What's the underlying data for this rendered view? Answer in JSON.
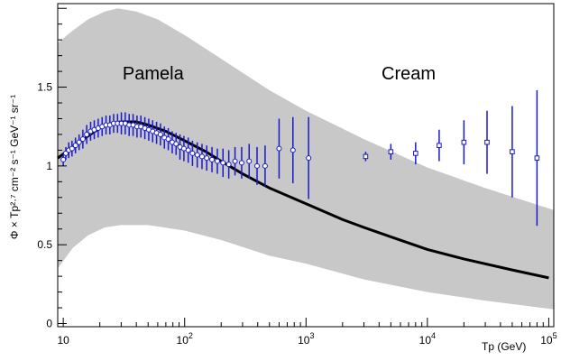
{
  "chart_data": {
    "type": "line",
    "title": "",
    "xlabel": "Tp (GeV)",
    "ylabel": "Φ × Tp²·⁷ cm⁻² s⁻¹ GeV⁻¹ sr⁻¹",
    "xscale": "log",
    "xlim": [
      9,
      110000
    ],
    "ylim": [
      -0.02,
      2.03
    ],
    "x_ticks": [
      {
        "value": 10,
        "base": "10",
        "exp": ""
      },
      {
        "value": 100,
        "base": "10",
        "exp": "2"
      },
      {
        "value": 1000,
        "base": "10",
        "exp": "3"
      },
      {
        "value": 10000,
        "base": "10",
        "exp": "4"
      },
      {
        "value": 100000,
        "base": "10",
        "exp": "5"
      }
    ],
    "y_ticks": [
      {
        "value": 0,
        "label": "0"
      },
      {
        "value": 0.5,
        "label": "0.5"
      },
      {
        "value": 1,
        "label": "1"
      },
      {
        "value": 1.5,
        "label": "1.5"
      }
    ],
    "annotations": [
      {
        "text": "Pamela",
        "x": 55,
        "y": 1.55
      },
      {
        "text": "Cream",
        "x": 7000,
        "y": 1.55
      }
    ],
    "band": {
      "color": "#c8c8c8",
      "upper": [
        [
          9,
          1.78
        ],
        [
          12,
          1.86
        ],
        [
          16,
          1.93
        ],
        [
          22,
          1.98
        ],
        [
          28,
          2.0
        ],
        [
          40,
          1.98
        ],
        [
          60,
          1.93
        ],
        [
          100,
          1.83
        ],
        [
          200,
          1.68
        ],
        [
          500,
          1.48
        ],
        [
          1000,
          1.35
        ],
        [
          3000,
          1.17
        ],
        [
          10000,
          0.99
        ],
        [
          30000,
          0.86
        ],
        [
          110000,
          0.72
        ]
      ],
      "lower": [
        [
          9,
          0.35
        ],
        [
          12,
          0.48
        ],
        [
          16,
          0.56
        ],
        [
          22,
          0.61
        ],
        [
          30,
          0.625
        ],
        [
          50,
          0.625
        ],
        [
          100,
          0.59
        ],
        [
          200,
          0.53
        ],
        [
          500,
          0.43
        ],
        [
          1000,
          0.38
        ],
        [
          3000,
          0.28
        ],
        [
          10000,
          0.2
        ],
        [
          30000,
          0.145
        ],
        [
          110000,
          0.09
        ]
      ]
    },
    "series": [
      {
        "type": "line",
        "color": "#000000",
        "values": [
          [
            9,
            1.05
          ],
          [
            12,
            1.12
          ],
          [
            16,
            1.19
          ],
          [
            20,
            1.24
          ],
          [
            25,
            1.27
          ],
          [
            30,
            1.28
          ],
          [
            40,
            1.28
          ],
          [
            50,
            1.26
          ],
          [
            70,
            1.22
          ],
          [
            100,
            1.16
          ],
          [
            150,
            1.09
          ],
          [
            200,
            1.03
          ],
          [
            300,
            0.95
          ],
          [
            500,
            0.86
          ],
          [
            1000,
            0.76
          ],
          [
            2000,
            0.66
          ],
          [
            3000,
            0.61
          ],
          [
            5000,
            0.55
          ],
          [
            10000,
            0.47
          ],
          [
            20000,
            0.41
          ],
          [
            50000,
            0.34
          ],
          [
            100000,
            0.29
          ]
        ]
      },
      {
        "type": "errorbar",
        "marker": "circle",
        "color": "#1a1acc",
        "points": [
          {
            "x": 10.0,
            "y": 1.04,
            "e": 0.04
          },
          {
            "x": 10.5,
            "y": 1.08,
            "e": 0.04
          },
          {
            "x": 11.1,
            "y": 1.1,
            "e": 0.05
          },
          {
            "x": 11.8,
            "y": 1.11,
            "e": 0.05
          },
          {
            "x": 12.6,
            "y": 1.13,
            "e": 0.05
          },
          {
            "x": 13.5,
            "y": 1.15,
            "e": 0.05
          },
          {
            "x": 14.5,
            "y": 1.17,
            "e": 0.06
          },
          {
            "x": 15.6,
            "y": 1.2,
            "e": 0.06
          },
          {
            "x": 16.8,
            "y": 1.22,
            "e": 0.06
          },
          {
            "x": 18.0,
            "y": 1.23,
            "e": 0.06
          },
          {
            "x": 19.4,
            "y": 1.24,
            "e": 0.06
          },
          {
            "x": 20.9,
            "y": 1.25,
            "e": 0.06
          },
          {
            "x": 22.5,
            "y": 1.26,
            "e": 0.06
          },
          {
            "x": 24.2,
            "y": 1.26,
            "e": 0.06
          },
          {
            "x": 26.0,
            "y": 1.27,
            "e": 0.06
          },
          {
            "x": 28.0,
            "y": 1.27,
            "e": 0.06
          },
          {
            "x": 30.1,
            "y": 1.27,
            "e": 0.07
          },
          {
            "x": 32.4,
            "y": 1.27,
            "e": 0.07
          },
          {
            "x": 34.9,
            "y": 1.26,
            "e": 0.07
          },
          {
            "x": 37.6,
            "y": 1.26,
            "e": 0.07
          },
          {
            "x": 40.5,
            "y": 1.25,
            "e": 0.07
          },
          {
            "x": 43.6,
            "y": 1.25,
            "e": 0.07
          },
          {
            "x": 47.0,
            "y": 1.24,
            "e": 0.07
          },
          {
            "x": 50.6,
            "y": 1.23,
            "e": 0.07
          },
          {
            "x": 54.5,
            "y": 1.22,
            "e": 0.07
          },
          {
            "x": 58.7,
            "y": 1.21,
            "e": 0.07
          },
          {
            "x": 63.2,
            "y": 1.2,
            "e": 0.07
          },
          {
            "x": 68.1,
            "y": 1.18,
            "e": 0.07
          },
          {
            "x": 73.3,
            "y": 1.17,
            "e": 0.07
          },
          {
            "x": 79.0,
            "y": 1.15,
            "e": 0.07
          },
          {
            "x": 85.0,
            "y": 1.14,
            "e": 0.07
          },
          {
            "x": 91.5,
            "y": 1.12,
            "e": 0.08
          },
          {
            "x": 98.6,
            "y": 1.11,
            "e": 0.08
          },
          {
            "x": 107,
            "y": 1.1,
            "e": 0.08
          },
          {
            "x": 116,
            "y": 1.08,
            "e": 0.08
          },
          {
            "x": 127,
            "y": 1.07,
            "e": 0.08
          },
          {
            "x": 139,
            "y": 1.06,
            "e": 0.08
          },
          {
            "x": 152,
            "y": 1.05,
            "e": 0.08
          },
          {
            "x": 168,
            "y": 1.04,
            "e": 0.08
          },
          {
            "x": 186,
            "y": 1.03,
            "e": 0.08
          },
          {
            "x": 207,
            "y": 1.02,
            "e": 0.09
          },
          {
            "x": 231,
            "y": 1.01,
            "e": 0.09
          },
          {
            "x": 260,
            "y": 1.03,
            "e": 0.09
          },
          {
            "x": 295,
            "y": 1.02,
            "e": 0.1
          },
          {
            "x": 340,
            "y": 1.03,
            "e": 0.11
          },
          {
            "x": 395,
            "y": 1.0,
            "e": 0.12
          },
          {
            "x": 460,
            "y": 1.0,
            "e": 0.13
          },
          {
            "x": 600,
            "y": 1.11,
            "e": 0.19
          },
          {
            "x": 780,
            "y": 1.1,
            "e": 0.21
          },
          {
            "x": 1050,
            "y": 1.05,
            "e": 0.26
          }
        ]
      },
      {
        "type": "errorbar",
        "marker": "square",
        "color": "#1a1acc",
        "points": [
          {
            "x": 3100,
            "y": 1.06,
            "e": 0.03
          },
          {
            "x": 5000,
            "y": 1.09,
            "e": 0.05
          },
          {
            "x": 8000,
            "y": 1.08,
            "e": 0.07
          },
          {
            "x": 12500,
            "y": 1.13,
            "e": 0.1
          },
          {
            "x": 20000,
            "y": 1.15,
            "e": 0.14
          },
          {
            "x": 31000,
            "y": 1.15,
            "e": 0.2
          },
          {
            "x": 50000,
            "y": 1.09,
            "e": 0.29
          },
          {
            "x": 80000,
            "y": 1.05,
            "e": 0.43
          }
        ]
      }
    ]
  }
}
